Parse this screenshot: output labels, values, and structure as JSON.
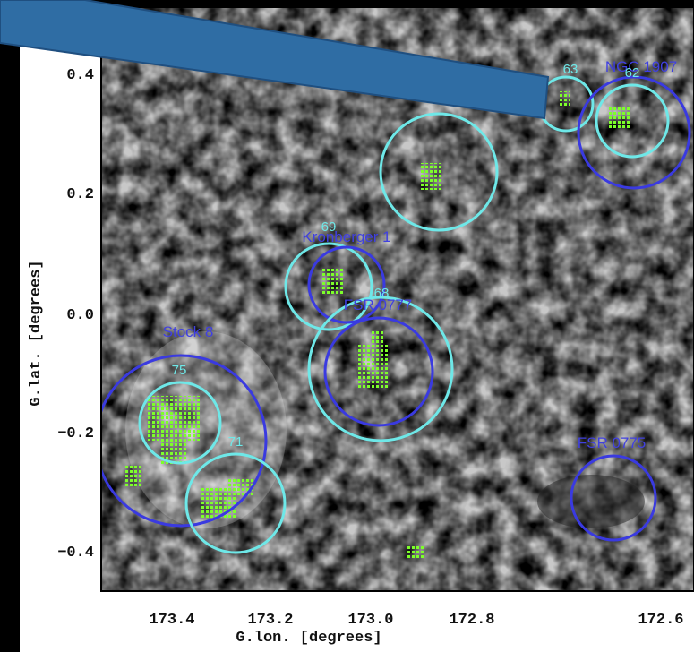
{
  "axes": {
    "x_ticks": [
      "173.4",
      "173.2",
      "173.0",
      "172.8",
      "172.6"
    ],
    "y_ticks": [
      "0.4",
      "0.2",
      "0.0",
      "−0.2",
      "−0.4"
    ],
    "x_label": "G.lon. [degrees]",
    "y_label": "G.lat. [degrees]"
  },
  "labels": [
    "63",
    "NGC 1907",
    "62",
    "69",
    "Kronberger 1",
    "68",
    "FSR 0777",
    "Stock 8",
    "75",
    "71",
    "FSR 0775"
  ]
}
